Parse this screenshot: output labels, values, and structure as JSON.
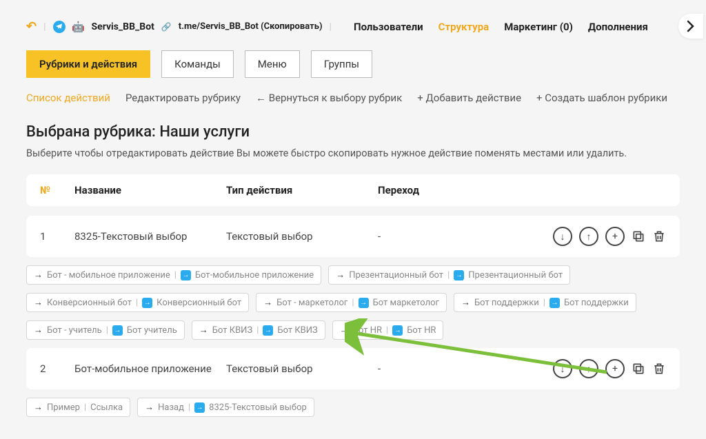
{
  "header": {
    "bot_name": "Servis_BB_Bot",
    "bot_link": "t.me/Servis_BB_Bot (Скопировать)",
    "nav": [
      {
        "label": "Пользователи",
        "active": false
      },
      {
        "label": "Структура",
        "active": true
      },
      {
        "label": "Маркетинг (0)",
        "active": false
      },
      {
        "label": "Дополнения",
        "active": false
      }
    ]
  },
  "tabs": [
    {
      "label": "Рубрики и действия",
      "active": true
    },
    {
      "label": "Команды",
      "active": false
    },
    {
      "label": "Меню",
      "active": false
    },
    {
      "label": "Группы",
      "active": false
    }
  ],
  "subnav": [
    {
      "label": "Список действий",
      "active": true
    },
    {
      "label": "Редактировать рубрику",
      "active": false
    },
    {
      "label": "← Вернуться к выбору рубрик",
      "active": false
    },
    {
      "label": "+ Добавить действие",
      "active": false
    },
    {
      "label": "+ Создать шаблон рубрики",
      "active": false
    }
  ],
  "heading": "Выбрана рубрика: Наши услуги",
  "subtext": "Выберите чтобы отредактировать действие Вы можете быстро скопировать нужное действие поменять местами или удалить.",
  "table": {
    "columns": {
      "num": "№",
      "name": "Название",
      "type": "Тип действия",
      "transition": "Переход"
    },
    "rows": [
      {
        "num": "1",
        "name": "8325-Текстовый выбор",
        "type": "Текстовый выбор",
        "transition": "-"
      },
      {
        "num": "2",
        "name": "Бот-мобильное приложение",
        "type": "Текстовый выбор",
        "transition": "-"
      }
    ]
  },
  "tags_row1": [
    {
      "left": "Бот - мобильное приложение",
      "right": "Бот-мобильное приложение"
    },
    {
      "left": "Презентационный бот",
      "right": "Презентационный бот"
    }
  ],
  "tags_row2": [
    {
      "left": "Конверсионный бот",
      "right": "Конверсионный бот"
    },
    {
      "left": "Бот - маркетолог",
      "right": "Бот маркетолог"
    },
    {
      "left": "Бот поддержки",
      "right": "Бот поддержки"
    }
  ],
  "tags_row3": [
    {
      "left": "Бот - учитель",
      "right": "Бот учитель"
    },
    {
      "left": "Бот КВИЗ",
      "right": "Бот КВИЗ"
    },
    {
      "left": "Бот HR",
      "right": "Бот HR"
    }
  ],
  "tags_row4": [
    {
      "left": "Пример",
      "plain_right": "Ссылка"
    },
    {
      "left": "Назад",
      "right": "8325-Текстовый выбор"
    }
  ],
  "colors": {
    "accent": "#f0a81f",
    "yellow_btn": "#f6c226",
    "blue": "#2aabee",
    "green_arrow": "#7bbf3a",
    "bg": "#f5f5f5"
  }
}
